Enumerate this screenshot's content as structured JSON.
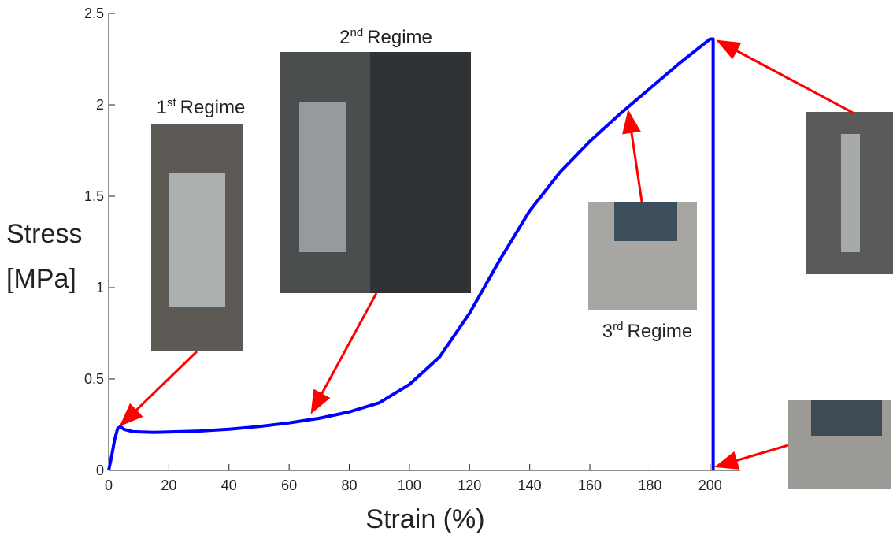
{
  "chart_data": {
    "type": "line",
    "xlabel": "Strain (%)",
    "ylabel": [
      "Stress",
      "[MPa]"
    ],
    "xlim": [
      0,
      210
    ],
    "ylim": [
      0,
      2.5
    ],
    "xticks": [
      0,
      20,
      40,
      60,
      80,
      100,
      120,
      140,
      160,
      180,
      200
    ],
    "yticks": [
      0,
      0.5,
      1,
      1.5,
      2,
      2.5
    ],
    "series": [
      {
        "color": "#0000ff",
        "x": [
          0,
          1,
          2,
          3,
          4,
          5,
          8,
          15,
          20,
          30,
          40,
          50,
          60,
          70,
          80,
          90,
          100,
          110,
          120,
          130,
          140,
          150,
          160,
          170,
          180,
          190,
          200,
          201,
          201
        ],
        "values": [
          0,
          0.08,
          0.17,
          0.23,
          0.24,
          0.225,
          0.212,
          0.208,
          0.21,
          0.215,
          0.225,
          0.24,
          0.26,
          0.285,
          0.32,
          0.37,
          0.47,
          0.62,
          0.86,
          1.15,
          1.42,
          1.63,
          1.8,
          1.95,
          2.09,
          2.23,
          2.36,
          2.36,
          0
        ]
      }
    ],
    "annotations": [
      {
        "number": "1",
        "suffix": "st",
        "word": "Regime"
      },
      {
        "number": "2",
        "suffix": "nd",
        "word": "Regime"
      },
      {
        "number": "3",
        "suffix": "rd",
        "word": "Regime"
      }
    ]
  }
}
